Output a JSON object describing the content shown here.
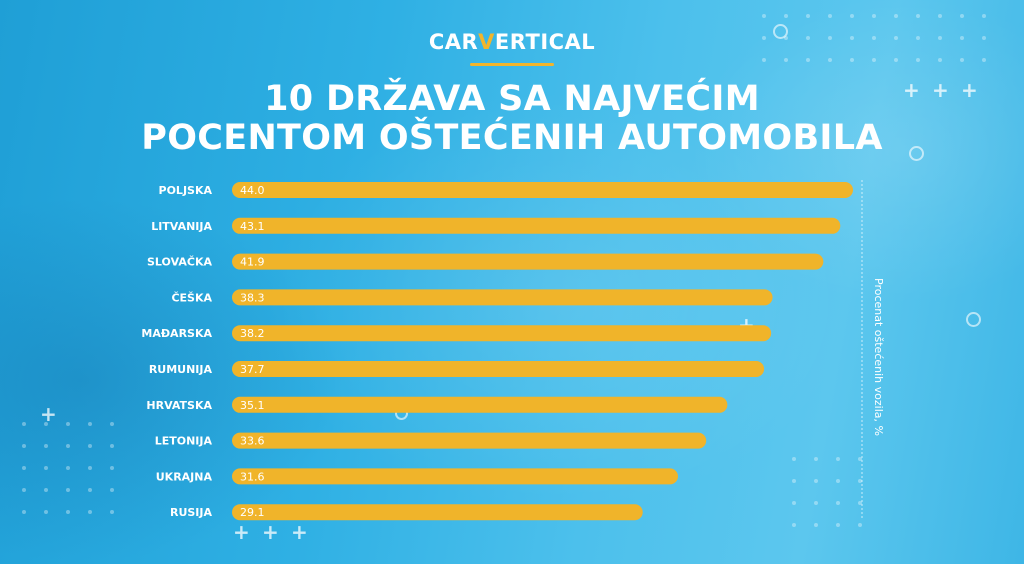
{
  "logo": {
    "part1": "CAR",
    "part2": "V",
    "part3": "ERTICAL"
  },
  "title": {
    "line1": "10 DRŽAVA SA NAJVEĆIM",
    "line2": "POCENTOM OŠTEĆENIH AUTOMOBILA"
  },
  "colors": {
    "bar": "#f0b42a",
    "label": "#ffffff",
    "accent": "#f2b52b"
  },
  "chart_data": {
    "type": "bar",
    "orientation": "horizontal",
    "categories": [
      "POLJSKA",
      "LITVANIJA",
      "SLOVAČKA",
      "ČEŠKA",
      "MAĐARSKA",
      "RUMUNIJA",
      "HRVATSKA",
      "LETONIJA",
      "UKRAJNA",
      "RUSIJA"
    ],
    "values": [
      44.0,
      43.1,
      41.9,
      38.3,
      38.2,
      37.7,
      35.1,
      33.6,
      31.6,
      29.1
    ],
    "value_labels": [
      "44.0",
      "43.1",
      "41.9",
      "38.3",
      "38.2",
      "37.7",
      "35.1",
      "33.6",
      "31.6",
      "29.1"
    ],
    "title": "10 DRŽAVA SA NAJVEĆIM POCENTOM OŠTEĆENIH AUTOMOBILA",
    "ylabel": "Procenat oštećenih vozila, %",
    "xlim": [
      0,
      44.0
    ],
    "grid": false,
    "legend": "none"
  }
}
